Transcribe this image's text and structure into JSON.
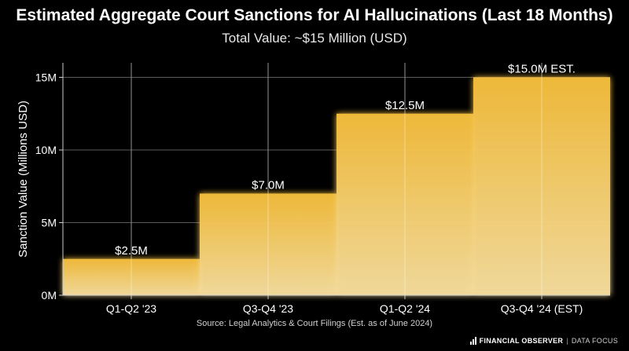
{
  "header": {
    "title": "Estimated Aggregate Court Sanctions for AI Hallucinations (Last 18 Months)",
    "subtitle": "Total Value: ~$15 Million (USD)"
  },
  "footer": {
    "source": "Source: Legal Analytics & Court Filings (Est. as of June 2024)",
    "brand_name": "FINANCIAL OBSERVER",
    "brand_sep": "|",
    "brand_tag": "DATA FOCUS"
  },
  "chart_data": {
    "type": "bar",
    "categories": [
      "Q1-Q2 '23",
      "Q3-Q4 '23",
      "Q1-Q2 '24",
      "Q3-Q4 '24 (EST)"
    ],
    "values": [
      2.5,
      7.0,
      12.5,
      15.0
    ],
    "data_labels": [
      "$2.5M",
      "$7.0M",
      "$12.5M",
      "$15.0M EST."
    ],
    "ylabel": "Sanction Value (Millions USD)",
    "xlabel": "",
    "ylim": [
      0,
      16
    ],
    "yticks": [
      0,
      5,
      10,
      15
    ],
    "ytick_labels": [
      "0M",
      "5M",
      "10M",
      "15M"
    ],
    "grid": true,
    "bar_color": "#f2b631"
  }
}
